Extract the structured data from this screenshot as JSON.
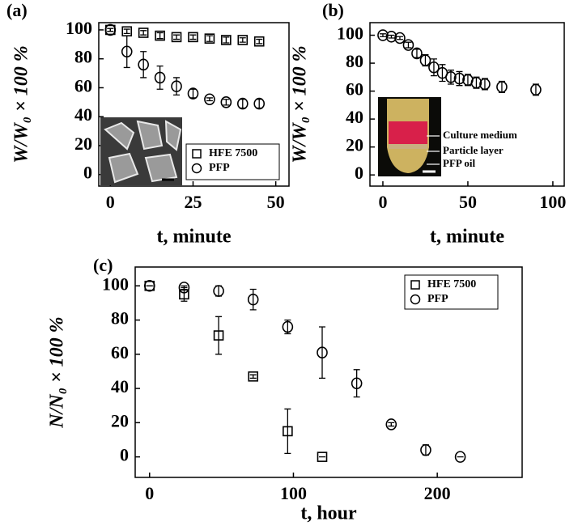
{
  "chart_data": [
    {
      "type": "scatter",
      "panel_label": "(a)",
      "xlabel": "t, minute",
      "ylabel": "W/W₀ × 100 %",
      "xlim": [
        -3.5,
        54
      ],
      "ylim": [
        -8,
        105
      ],
      "xticks": [
        0,
        25,
        50
      ],
      "yticks": [
        0,
        20,
        40,
        60,
        80,
        100
      ],
      "legend": "lower right",
      "series": [
        {
          "name": "HFE 7500",
          "marker": "square",
          "color": "#000000",
          "x": [
            0,
            5,
            10,
            15,
            20,
            25,
            30,
            35,
            40,
            45
          ],
          "values": [
            100,
            99,
            98,
            96,
            95,
            95,
            94,
            93,
            93,
            92
          ],
          "errors": [
            1,
            1.5,
            1.5,
            2,
            1.5,
            1.5,
            2,
            2,
            1.5,
            1.5
          ]
        },
        {
          "name": "PFP",
          "marker": "circle",
          "color": "#000000",
          "x": [
            0,
            5,
            10,
            15,
            20,
            25,
            30,
            35,
            40,
            45
          ],
          "values": [
            100,
            85,
            76,
            67,
            61,
            56,
            52,
            50,
            49,
            49
          ],
          "errors": [
            1,
            11,
            9,
            8,
            6,
            3,
            1,
            2,
            3,
            3
          ]
        }
      ]
    },
    {
      "type": "scatter",
      "panel_label": "(b)",
      "xlabel": "t, minute",
      "ylabel": "W/W₀ × 100 %",
      "xlim": [
        -7.6,
        106.7
      ],
      "ylim": [
        -8,
        109
      ],
      "xticks": [
        0,
        50,
        100
      ],
      "yticks": [
        0,
        20,
        40,
        60,
        80,
        100
      ],
      "annotations": [
        "Culture medium",
        "Particle layer",
        "PFP oil"
      ],
      "series": [
        {
          "marker": "circle",
          "color": "#000000",
          "x": [
            0,
            5,
            10,
            15,
            20,
            25,
            30,
            35,
            40,
            45,
            50,
            55,
            60,
            70,
            90
          ],
          "values": [
            100,
            99,
            98,
            93,
            87,
            82,
            77,
            73,
            70,
            69,
            68,
            66,
            65,
            63,
            61
          ],
          "errors": [
            1,
            1,
            1,
            2,
            3,
            4,
            6,
            6,
            5,
            5,
            4,
            4,
            4,
            4,
            4
          ]
        }
      ]
    },
    {
      "type": "scatter",
      "panel_label": "(c)",
      "xlabel": "t, hour",
      "ylabel": "N/N₀ × 100 %",
      "xlim": [
        -10,
        259
      ],
      "ylim": [
        -12,
        111
      ],
      "xticks": [
        0,
        100,
        200
      ],
      "yticks": [
        0,
        20,
        40,
        60,
        80,
        100
      ],
      "legend": "upper right",
      "series": [
        {
          "name": "HFE 7500",
          "marker": "square",
          "color": "#000000",
          "x": [
            0,
            24,
            48,
            72,
            96,
            120
          ],
          "values": [
            100,
            95,
            71,
            47,
            15,
            0
          ],
          "errors": [
            0,
            4,
            11,
            1,
            13,
            0
          ]
        },
        {
          "name": "PFP",
          "marker": "circle",
          "color": "#000000",
          "x": [
            0,
            24,
            48,
            72,
            96,
            120,
            144,
            168,
            192,
            216
          ],
          "values": [
            100,
            99,
            97,
            92,
            76,
            61,
            43,
            19,
            4,
            0
          ],
          "errors": [
            0,
            1,
            3,
            6,
            4,
            15,
            8,
            1,
            3,
            0
          ]
        }
      ]
    }
  ]
}
